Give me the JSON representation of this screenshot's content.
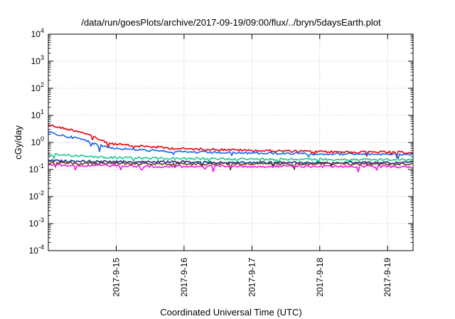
{
  "chart_data": {
    "type": "line",
    "title": "/data/run/goesPlots/archive/2017-09-19/09:00/flux/../bryn/5daysEarth.plot",
    "xlabel": "Coordinated Universal Time (UTC)",
    "ylabel": "cGy/day",
    "yscale": "log",
    "ylim": [
      0.0001,
      10000
    ],
    "y_ticks": [
      {
        "base": "10",
        "exp": "-4",
        "value": 0.0001
      },
      {
        "base": "10",
        "exp": "-3",
        "value": 0.001
      },
      {
        "base": "10",
        "exp": "-2",
        "value": 0.01
      },
      {
        "base": "10",
        "exp": "-1",
        "value": 0.1
      },
      {
        "base": "10",
        "exp": "0",
        "value": 1
      },
      {
        "base": "10",
        "exp": "1",
        "value": 10
      },
      {
        "base": "10",
        "exp": "2",
        "value": 100
      },
      {
        "base": "10",
        "exp": "3",
        "value": 1000
      },
      {
        "base": "10",
        "exp": "4",
        "value": 10000
      }
    ],
    "xlim": [
      "2017-09-14 00:00",
      "2017-09-19 09:00"
    ],
    "x_ticks": [
      "2017-9-15",
      "2017-9-16",
      "2017-9-17",
      "2017-9-18",
      "2017-9-19"
    ],
    "grid": true,
    "legend": "none",
    "series": [
      {
        "color": "#e8000b",
        "x": [
          "2017-09-14 00:00",
          "2017-09-14 03:00",
          "2017-09-14 06:00",
          "2017-09-14 09:00",
          "2017-09-14 12:00",
          "2017-09-14 15:00",
          "2017-09-14 18:00",
          "2017-09-14 21:00",
          "2017-09-15 00:00",
          "2017-09-15 06:00",
          "2017-09-15 12:00",
          "2017-09-15 18:00",
          "2017-09-16 00:00",
          "2017-09-16 12:00",
          "2017-09-17 00:00",
          "2017-09-17 12:00",
          "2017-09-18 00:00",
          "2017-09-18 12:00",
          "2017-09-19 00:00",
          "2017-09-19 09:00"
        ],
        "y": [
          4.5,
          3.8,
          3.2,
          2.8,
          2.4,
          1.8,
          1.3,
          1.0,
          0.85,
          0.75,
          0.7,
          0.62,
          0.58,
          0.55,
          0.5,
          0.48,
          0.45,
          0.44,
          0.44,
          0.42
        ]
      },
      {
        "color": "#1764f2",
        "x": [
          "2017-09-14 00:00",
          "2017-09-14 03:00",
          "2017-09-14 06:00",
          "2017-09-14 09:00",
          "2017-09-14 12:00",
          "2017-09-14 15:00",
          "2017-09-14 18:00",
          "2017-09-14 21:00",
          "2017-09-15 00:00",
          "2017-09-15 06:00",
          "2017-09-15 12:00",
          "2017-09-15 18:00",
          "2017-09-16 00:00",
          "2017-09-16 12:00",
          "2017-09-17 00:00",
          "2017-09-17 12:00",
          "2017-09-18 00:00",
          "2017-09-18 12:00",
          "2017-09-19 00:00",
          "2017-09-19 09:00"
        ],
        "y": [
          2.4,
          2.0,
          1.7,
          1.5,
          1.3,
          1.0,
          0.8,
          0.68,
          0.6,
          0.55,
          0.5,
          0.46,
          0.44,
          0.42,
          0.4,
          0.39,
          0.38,
          0.37,
          0.37,
          0.36
        ]
      },
      {
        "color": "#1ac98e",
        "x": [
          "2017-09-14 00:00",
          "2017-09-14 06:00",
          "2017-09-14 12:00",
          "2017-09-14 18:00",
          "2017-09-15 00:00",
          "2017-09-15 12:00",
          "2017-09-16 00:00",
          "2017-09-16 12:00",
          "2017-09-17 00:00",
          "2017-09-17 12:00",
          "2017-09-18 00:00",
          "2017-09-18 12:00",
          "2017-09-19 00:00",
          "2017-09-19 09:00"
        ],
        "y": [
          0.36,
          0.34,
          0.32,
          0.29,
          0.27,
          0.26,
          0.25,
          0.25,
          0.24,
          0.24,
          0.24,
          0.23,
          0.23,
          0.23
        ]
      },
      {
        "color": "#1a2a8c",
        "x": [
          "2017-09-14 00:00",
          "2017-09-14 12:00",
          "2017-09-15 00:00",
          "2017-09-15 12:00",
          "2017-09-16 00:00",
          "2017-09-16 12:00",
          "2017-09-17 00:00",
          "2017-09-17 12:00",
          "2017-09-18 00:00",
          "2017-09-18 12:00",
          "2017-09-19 00:00",
          "2017-09-19 09:00"
        ],
        "y": [
          0.21,
          0.2,
          0.19,
          0.19,
          0.19,
          0.18,
          0.18,
          0.18,
          0.18,
          0.18,
          0.18,
          0.18
        ]
      },
      {
        "color": "#6a3d1a",
        "x": [
          "2017-09-14 00:00",
          "2017-09-14 12:00",
          "2017-09-15 00:00",
          "2017-09-15 12:00",
          "2017-09-16 00:00",
          "2017-09-16 12:00",
          "2017-09-17 00:00",
          "2017-09-17 12:00",
          "2017-09-18 00:00",
          "2017-09-18 12:00",
          "2017-09-19 00:00",
          "2017-09-19 09:00"
        ],
        "y": [
          0.18,
          0.17,
          0.17,
          0.16,
          0.16,
          0.16,
          0.16,
          0.16,
          0.16,
          0.16,
          0.16,
          0.16
        ]
      },
      {
        "color": "#ef1be0",
        "x": [
          "2017-09-14 00:00",
          "2017-09-14 12:00",
          "2017-09-15 00:00",
          "2017-09-15 12:00",
          "2017-09-16 00:00",
          "2017-09-16 12:00",
          "2017-09-17 00:00",
          "2017-09-17 12:00",
          "2017-09-18 00:00",
          "2017-09-18 12:00",
          "2017-09-19 00:00",
          "2017-09-19 09:00"
        ],
        "y": [
          0.15,
          0.14,
          0.14,
          0.13,
          0.13,
          0.13,
          0.13,
          0.13,
          0.13,
          0.13,
          0.13,
          0.12
        ]
      }
    ]
  }
}
